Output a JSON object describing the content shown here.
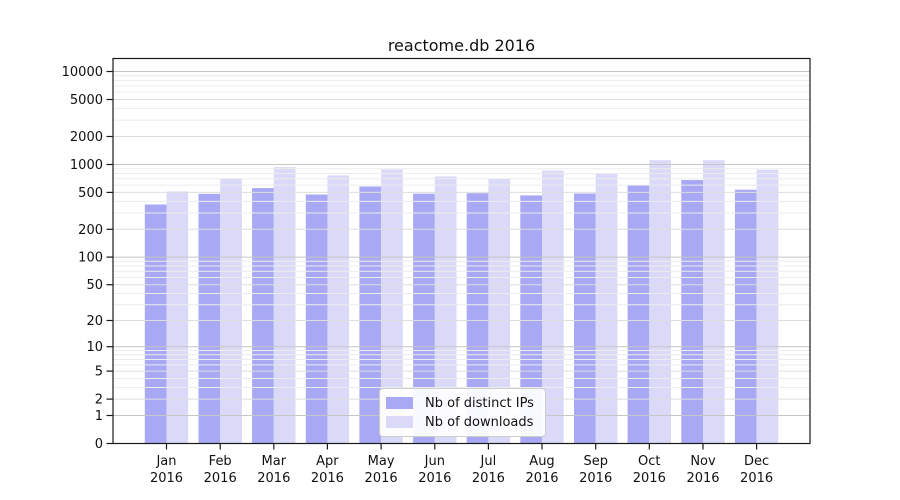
{
  "chart_data": {
    "type": "bar",
    "title": "reactome.db 2016",
    "year_label": "2016",
    "categories": [
      "Jan",
      "Feb",
      "Mar",
      "Apr",
      "May",
      "Jun",
      "Jul",
      "Aug",
      "Sep",
      "Oct",
      "Nov",
      "Dec"
    ],
    "series": [
      {
        "name": "Nb of distinct IPs",
        "color": "#a8a8f4",
        "values": [
          370,
          483,
          556,
          475,
          579,
          484,
          490,
          464,
          487,
          594,
          681,
          535
        ]
      },
      {
        "name": "Nb of downloads",
        "color": "#dadaf8",
        "values": [
          513,
          712,
          936,
          762,
          883,
          743,
          701,
          861,
          800,
          1112,
          1110,
          877
        ]
      }
    ],
    "yticks": [
      0,
      1,
      2,
      5,
      10,
      20,
      50,
      100,
      200,
      500,
      1000,
      2000,
      5000,
      10000
    ],
    "yscale": "log10(1+value)",
    "ylim_bottom": 0,
    "grid": "horizontal",
    "legend_position": "inside-bottom-center",
    "colors": {
      "grid_major": "#c6c6c6",
      "grid_mid": "#dedede",
      "grid_minor": "#ececec",
      "spine": "#1a1a1a",
      "text": "#111111"
    }
  }
}
